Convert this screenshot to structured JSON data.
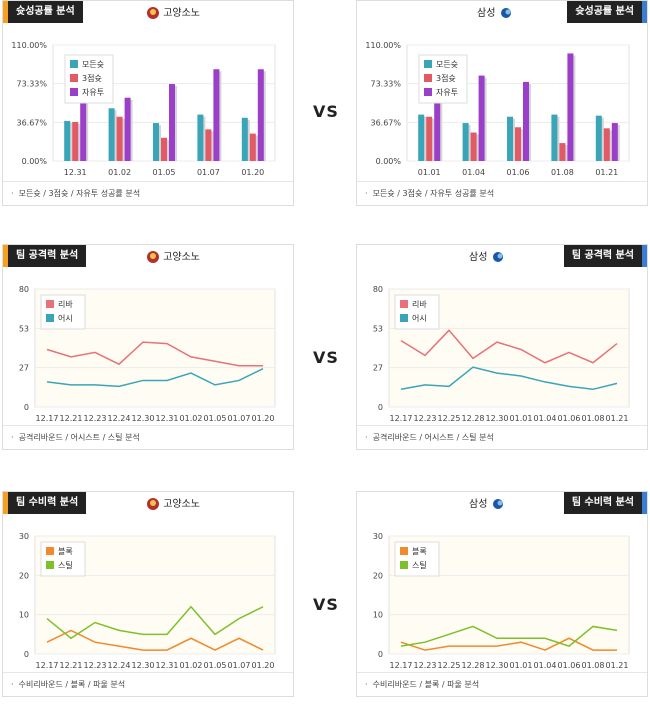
{
  "colors": {
    "orange": "#f5a021",
    "blue": "#3a7fcf",
    "panelbg": "#fffcf3",
    "grid": "#ececec"
  },
  "vs": "VS",
  "sections": [
    {
      "title": "슛성공률 분석",
      "footer": "모든슛 / 3점슛 / 자유투 성공률 분석",
      "left": {
        "team": "고양소노",
        "icon": "sono-icon"
      },
      "right": {
        "team": "삼성",
        "icon": "samsung-icon"
      }
    },
    {
      "title": "팀 공격력 분석",
      "footer": "공격리바운드 / 어시스트 / 스틸 분석",
      "left": {
        "team": "고양소노",
        "icon": "sono-icon"
      },
      "right": {
        "team": "삼성",
        "icon": "samsung-icon"
      }
    },
    {
      "title": "팀 수비력 분석",
      "footer": "수비리바운드 / 블록 / 파울 분석",
      "left": {
        "team": "고양소노",
        "icon": "sono-icon"
      },
      "right": {
        "team": "삼성",
        "icon": "samsung-icon"
      }
    }
  ],
  "chart_data": [
    {
      "id": "shoot-left",
      "type": "bar",
      "categories": [
        "12.31",
        "01.02",
        "01.05",
        "01.07",
        "01.20"
      ],
      "yticks": [
        "110.00%",
        "73.33%",
        "36.67%",
        "0.00%"
      ],
      "ylim": [
        0,
        110
      ],
      "series": [
        {
          "name": "모든슛",
          "color": "#3aa5b8",
          "values": [
            38,
            50,
            36,
            44,
            41
          ]
        },
        {
          "name": "3점슛",
          "color": "#e35a67",
          "values": [
            37,
            42,
            22,
            30,
            26
          ]
        },
        {
          "name": "자유투",
          "color": "#9b3fcb",
          "values": [
            70,
            60,
            73,
            87,
            87
          ]
        }
      ],
      "legend": "top-left"
    },
    {
      "id": "shoot-right",
      "type": "bar",
      "categories": [
        "01.01",
        "01.04",
        "01.06",
        "01.08",
        "01.21"
      ],
      "yticks": [
        "110.00%",
        "73.33%",
        "36.67%",
        "0.00%"
      ],
      "ylim": [
        0,
        110
      ],
      "series": [
        {
          "name": "모든슛",
          "color": "#3aa5b8",
          "values": [
            44,
            36,
            42,
            44,
            43
          ]
        },
        {
          "name": "3점슛",
          "color": "#e35a67",
          "values": [
            42,
            27,
            32,
            17,
            31
          ]
        },
        {
          "name": "자유투",
          "color": "#9b3fcb",
          "values": [
            70,
            81,
            75,
            102,
            36
          ]
        }
      ],
      "legend": "top-left"
    },
    {
      "id": "atk-left",
      "type": "line",
      "categories": [
        "12.17",
        "12.21",
        "12.23",
        "12.24",
        "12.30",
        "12.31",
        "01.02",
        "01.05",
        "01.07",
        "01.20"
      ],
      "yticks": [
        "80",
        "53",
        "27",
        "0"
      ],
      "ylim": [
        0,
        80
      ],
      "series": [
        {
          "name": "리바",
          "color": "#e8717a",
          "values": [
            39,
            34,
            37,
            29,
            44,
            43,
            34,
            31,
            28,
            28
          ]
        },
        {
          "name": "어시",
          "color": "#3aa5b8",
          "values": [
            17,
            15,
            15,
            14,
            18,
            18,
            23,
            15,
            18,
            26
          ]
        }
      ],
      "legend": "top-left"
    },
    {
      "id": "atk-right",
      "type": "line",
      "categories": [
        "12.17",
        "12.23",
        "12.25",
        "12.28",
        "12.30",
        "01.01",
        "01.04",
        "01.06",
        "01.08",
        "01.21"
      ],
      "yticks": [
        "80",
        "53",
        "27",
        "0"
      ],
      "ylim": [
        0,
        80
      ],
      "series": [
        {
          "name": "리바",
          "color": "#e8717a",
          "values": [
            45,
            35,
            52,
            33,
            44,
            39,
            30,
            37,
            30,
            43
          ]
        },
        {
          "name": "어시",
          "color": "#3aa5b8",
          "values": [
            12,
            15,
            14,
            27,
            23,
            21,
            17,
            14,
            12,
            16
          ]
        }
      ],
      "legend": "top-left"
    },
    {
      "id": "def-left",
      "type": "line",
      "categories": [
        "12.17",
        "12.21",
        "12.23",
        "12.24",
        "12.30",
        "12.31",
        "01.02",
        "01.05",
        "01.07",
        "01.20"
      ],
      "yticks": [
        "30",
        "20",
        "10",
        "0"
      ],
      "ylim": [
        0,
        30
      ],
      "series": [
        {
          "name": "블록",
          "color": "#f08a2c",
          "values": [
            3,
            6,
            3,
            2,
            1,
            1,
            4,
            1,
            4,
            1
          ]
        },
        {
          "name": "스틸",
          "color": "#7dc12a",
          "values": [
            9,
            4,
            8,
            6,
            5,
            5,
            12,
            5,
            9,
            12
          ]
        }
      ],
      "legend": "top-left"
    },
    {
      "id": "def-right",
      "type": "line",
      "categories": [
        "12.17",
        "12.23",
        "12.25",
        "12.28",
        "12.30",
        "01.01",
        "01.04",
        "01.06",
        "01.08",
        "01.21"
      ],
      "yticks": [
        "30",
        "20",
        "10",
        "0"
      ],
      "ylim": [
        0,
        30
      ],
      "series": [
        {
          "name": "블록",
          "color": "#f08a2c",
          "values": [
            3,
            1,
            2,
            2,
            2,
            3,
            1,
            4,
            1,
            1
          ]
        },
        {
          "name": "스틸",
          "color": "#7dc12a",
          "values": [
            2,
            3,
            5,
            7,
            4,
            4,
            4,
            2,
            7,
            6
          ]
        }
      ],
      "legend": "top-left"
    }
  ]
}
